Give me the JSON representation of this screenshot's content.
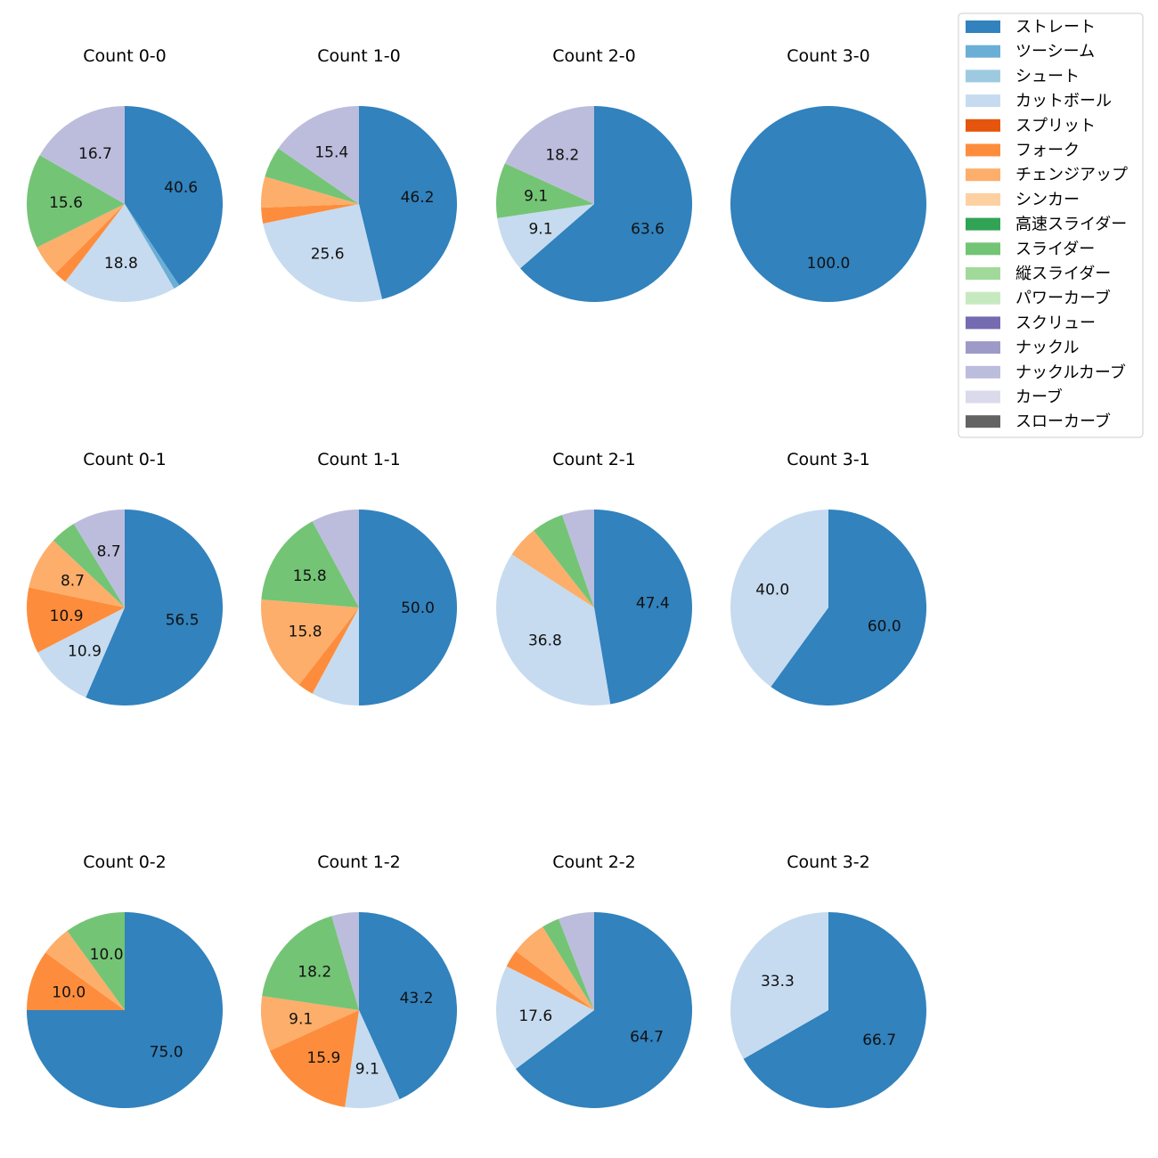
{
  "legend": {
    "entries": [
      {
        "name": "ストレート",
        "color": "#3182bd"
      },
      {
        "name": "ツーシーム",
        "color": "#6baed6"
      },
      {
        "name": "シュート",
        "color": "#9ecae1"
      },
      {
        "name": "カットボール",
        "color": "#c6dbef"
      },
      {
        "name": "スプリット",
        "color": "#e6550d"
      },
      {
        "name": "フォーク",
        "color": "#fd8d3c"
      },
      {
        "name": "チェンジアップ",
        "color": "#fdae6b"
      },
      {
        "name": "シンカー",
        "color": "#fdd0a2"
      },
      {
        "name": "高速スライダー",
        "color": "#31a354"
      },
      {
        "name": "スライダー",
        "color": "#74c476"
      },
      {
        "name": "縦スライダー",
        "color": "#a1d99b"
      },
      {
        "name": "パワーカーブ",
        "color": "#c7e9c0"
      },
      {
        "name": "スクリュー",
        "color": "#756bb1"
      },
      {
        "name": "ナックル",
        "color": "#9e9ac8"
      },
      {
        "name": "ナックルカーブ",
        "color": "#bcbddc"
      },
      {
        "name": "カーブ",
        "color": "#dadaeb"
      },
      {
        "name": "スローカーブ",
        "color": "#636363"
      }
    ]
  },
  "chart_data": [
    {
      "type": "pie",
      "title": "Count 0-0",
      "slices": [
        {
          "category": "ストレート",
          "value": 40.6,
          "label": "40.6"
        },
        {
          "category": "ツーシーム",
          "value": 1.0,
          "label": ""
        },
        {
          "category": "カットボール",
          "value": 18.8,
          "label": "18.8"
        },
        {
          "category": "フォーク",
          "value": 2.1,
          "label": ""
        },
        {
          "category": "チェンジアップ",
          "value": 5.2,
          "label": ""
        },
        {
          "category": "スライダー",
          "value": 15.6,
          "label": "15.6"
        },
        {
          "category": "ナックルカーブ",
          "value": 16.7,
          "label": "16.7"
        }
      ]
    },
    {
      "type": "pie",
      "title": "Count 1-0",
      "slices": [
        {
          "category": "ストレート",
          "value": 46.2,
          "label": "46.2"
        },
        {
          "category": "カットボール",
          "value": 25.6,
          "label": "25.6"
        },
        {
          "category": "フォーク",
          "value": 2.6,
          "label": ""
        },
        {
          "category": "チェンジアップ",
          "value": 5.1,
          "label": ""
        },
        {
          "category": "スライダー",
          "value": 5.1,
          "label": ""
        },
        {
          "category": "ナックルカーブ",
          "value": 15.4,
          "label": "15.4"
        }
      ]
    },
    {
      "type": "pie",
      "title": "Count 2-0",
      "slices": [
        {
          "category": "ストレート",
          "value": 63.6,
          "label": "63.6"
        },
        {
          "category": "カットボール",
          "value": 9.1,
          "label": "9.1"
        },
        {
          "category": "スライダー",
          "value": 9.1,
          "label": "9.1"
        },
        {
          "category": "ナックルカーブ",
          "value": 18.2,
          "label": "18.2"
        }
      ]
    },
    {
      "type": "pie",
      "title": "Count 3-0",
      "slices": [
        {
          "category": "ストレート",
          "value": 100.0,
          "label": "100.0"
        }
      ]
    },
    {
      "type": "pie",
      "title": "Count 0-1",
      "slices": [
        {
          "category": "ストレート",
          "value": 56.5,
          "label": "56.5"
        },
        {
          "category": "カットボール",
          "value": 10.9,
          "label": "10.9"
        },
        {
          "category": "フォーク",
          "value": 10.9,
          "label": "10.9"
        },
        {
          "category": "チェンジアップ",
          "value": 8.7,
          "label": "8.7"
        },
        {
          "category": "スライダー",
          "value": 4.3,
          "label": ""
        },
        {
          "category": "ナックルカーブ",
          "value": 8.7,
          "label": "8.7"
        }
      ]
    },
    {
      "type": "pie",
      "title": "Count 1-1",
      "slices": [
        {
          "category": "ストレート",
          "value": 50.0,
          "label": "50.0"
        },
        {
          "category": "カットボール",
          "value": 7.9,
          "label": ""
        },
        {
          "category": "フォーク",
          "value": 2.6,
          "label": ""
        },
        {
          "category": "チェンジアップ",
          "value": 15.8,
          "label": "15.8"
        },
        {
          "category": "スライダー",
          "value": 15.8,
          "label": "15.8"
        },
        {
          "category": "ナックルカーブ",
          "value": 7.9,
          "label": ""
        }
      ]
    },
    {
      "type": "pie",
      "title": "Count 2-1",
      "slices": [
        {
          "category": "ストレート",
          "value": 47.4,
          "label": "47.4"
        },
        {
          "category": "カットボール",
          "value": 36.8,
          "label": "36.8"
        },
        {
          "category": "チェンジアップ",
          "value": 5.3,
          "label": ""
        },
        {
          "category": "スライダー",
          "value": 5.3,
          "label": ""
        },
        {
          "category": "ナックルカーブ",
          "value": 5.3,
          "label": ""
        }
      ]
    },
    {
      "type": "pie",
      "title": "Count 3-1",
      "slices": [
        {
          "category": "ストレート",
          "value": 60.0,
          "label": "60.0"
        },
        {
          "category": "カットボール",
          "value": 40.0,
          "label": "40.0"
        }
      ]
    },
    {
      "type": "pie",
      "title": "Count 0-2",
      "slices": [
        {
          "category": "ストレート",
          "value": 75.0,
          "label": "75.0"
        },
        {
          "category": "フォーク",
          "value": 10.0,
          "label": "10.0"
        },
        {
          "category": "チェンジアップ",
          "value": 5.0,
          "label": ""
        },
        {
          "category": "スライダー",
          "value": 10.0,
          "label": "10.0"
        }
      ]
    },
    {
      "type": "pie",
      "title": "Count 1-2",
      "slices": [
        {
          "category": "ストレート",
          "value": 43.2,
          "label": "43.2"
        },
        {
          "category": "カットボール",
          "value": 9.1,
          "label": "9.1"
        },
        {
          "category": "フォーク",
          "value": 15.9,
          "label": "15.9"
        },
        {
          "category": "チェンジアップ",
          "value": 9.1,
          "label": "9.1"
        },
        {
          "category": "スライダー",
          "value": 18.2,
          "label": "18.2"
        },
        {
          "category": "ナックルカーブ",
          "value": 4.5,
          "label": ""
        }
      ]
    },
    {
      "type": "pie",
      "title": "Count 2-2",
      "slices": [
        {
          "category": "ストレート",
          "value": 64.7,
          "label": "64.7"
        },
        {
          "category": "カットボール",
          "value": 17.6,
          "label": "17.6"
        },
        {
          "category": "フォーク",
          "value": 2.9,
          "label": ""
        },
        {
          "category": "チェンジアップ",
          "value": 5.9,
          "label": ""
        },
        {
          "category": "スライダー",
          "value": 2.9,
          "label": ""
        },
        {
          "category": "ナックルカーブ",
          "value": 5.9,
          "label": ""
        }
      ]
    },
    {
      "type": "pie",
      "title": "Count 3-2",
      "slices": [
        {
          "category": "ストレート",
          "value": 66.7,
          "label": "66.7"
        },
        {
          "category": "カットボール",
          "value": 33.3,
          "label": "33.3"
        }
      ]
    }
  ]
}
